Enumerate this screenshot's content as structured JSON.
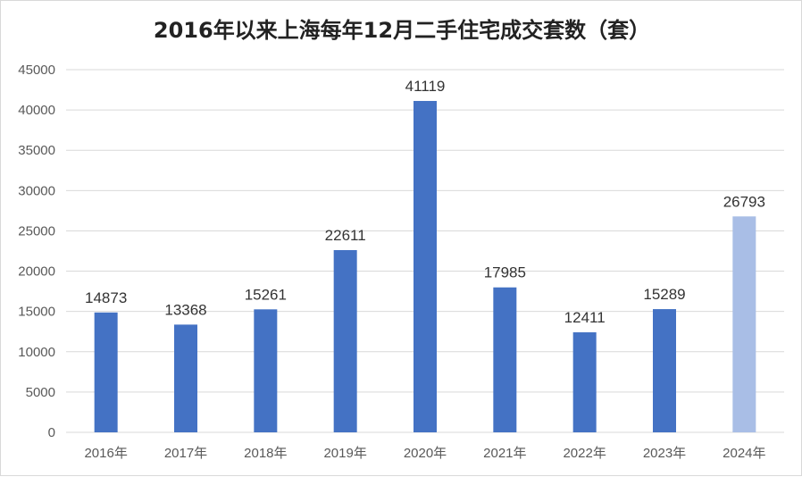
{
  "chart_data": {
    "type": "bar",
    "title": "2016年以来上海每年12月二手住宅成交套数（套）",
    "categories": [
      "2016年",
      "2017年",
      "2018年",
      "2019年",
      "2020年",
      "2021年",
      "2022年",
      "2023年",
      "2024年"
    ],
    "values": [
      14873,
      13368,
      15261,
      22611,
      41119,
      17985,
      12411,
      15289,
      26793
    ],
    "ylim": [
      0,
      45000
    ],
    "yticks": [
      0,
      5000,
      10000,
      15000,
      20000,
      25000,
      30000,
      35000,
      40000,
      45000
    ],
    "grid": true,
    "legend": "none",
    "colors": {
      "bar": "#4472c4",
      "highlight_bar": "#a9bee6",
      "highlight_category": "2024年"
    }
  }
}
